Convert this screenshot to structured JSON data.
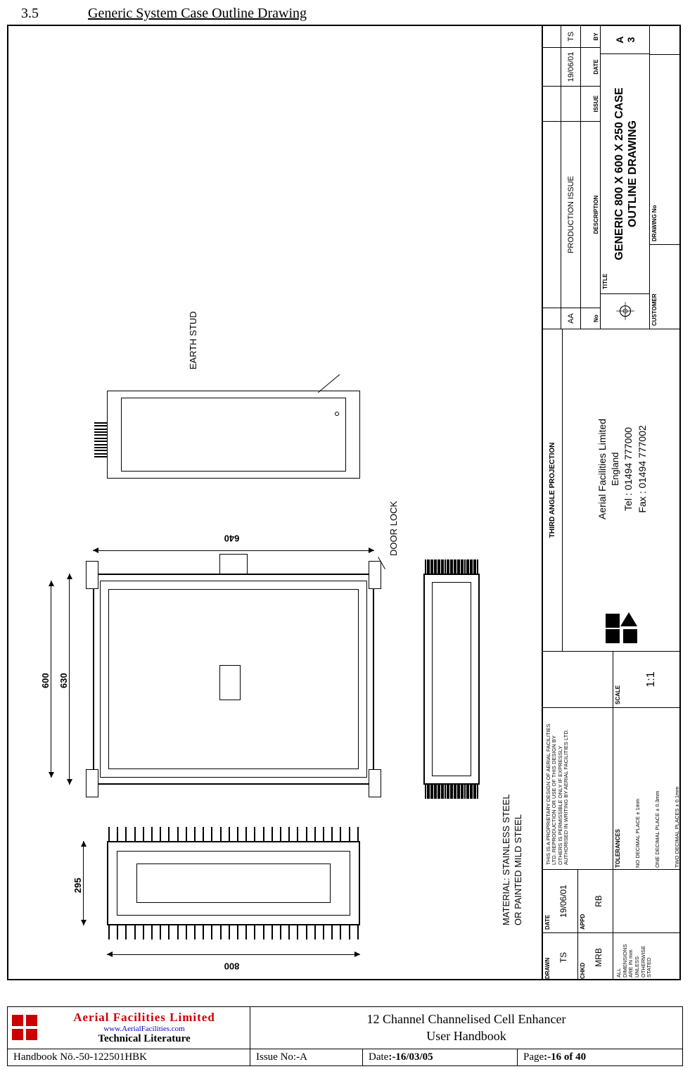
{
  "section": {
    "number": "3.5",
    "title": "Generic System Case Outline Drawing"
  },
  "drawing": {
    "dims": {
      "width_top": "600",
      "height_left": "800",
      "depth": "295",
      "front_width": "630",
      "front_height": "640"
    },
    "callouts": {
      "earth_stud": "EARTH STUD",
      "door_lock": "DOOR LOCK"
    },
    "material": {
      "line1": "MATERIAL:  STAINLESS STEEL",
      "line2": "OR PAINTED MILD STEEL"
    }
  },
  "titleblock": {
    "col1": {
      "drawn_lbl": "DRAWN",
      "drawn": "TS",
      "chkd_lbl": "CHKD",
      "chkd": "MRB",
      "note": "ALL DIMENSIONS ARE IN mm UNLESS OTHERWISE STATED"
    },
    "col2": {
      "date_lbl": "DATE",
      "date": "19/06/01",
      "appd_lbl": "APPD",
      "appd": "RB"
    },
    "col3": {
      "proprietary": "THIS IS A PROPRIETARY DESIGN OF AERIAL FACILITIES LTD. REPRODUCTION OR USE OF THIS DESIGN BY OTHERS IS PERMISSIBLE ONLY IF EXPRESSLY AUTHORISED IN WRITING BY AERIAL FACILITIES LTD.",
      "tol_lbl": "TOLERANCES",
      "tol1": "NO DECIMAL PLACE ± 1mm",
      "tol2": "ONE DECIMAL PLACE ± 0.3mm",
      "tol3": "TWO DECIMAL PLACES ± 0.1mm"
    },
    "col4": {
      "scale_lbl": "SCALE",
      "scale": "1:1"
    },
    "col5": {
      "proj": "THIRD ANGLE PROJECTION",
      "company": "Aerial Facilities Limited",
      "country": "England",
      "tel": "Tel : 01494 777000",
      "fax": "Fax : 01494 777002"
    },
    "col6": {
      "rev": {
        "no_lbl": "No",
        "desc_lbl": "DESCRIPTION",
        "iss_lbl": "ISSUE",
        "date_lbl": "DATE",
        "by_lbl": "BY",
        "no": "AA",
        "desc": "PRODUCTION ISSUE",
        "iss": "",
        "date": "19/06/01",
        "by": "TS"
      },
      "title_lbl": "TITLE",
      "title1": "GENERIC 800 X 600 X 250 CASE",
      "title2": "OUTLINE DRAWING",
      "iss_letter": "A",
      "iss_num": "3",
      "cust_lbl": "CUSTOMER",
      "dwg_lbl": "DRAWING No"
    }
  },
  "footer": {
    "brand": {
      "line1": "Aerial  Facilities  Limited",
      "line2": "www.AerialFacilities.com",
      "line3": "Technical Literature"
    },
    "doc": {
      "line1": "12 Channel Channelised Cell Enhancer",
      "line2": "User Handbook"
    },
    "row2": {
      "handbook_lbl": "Handbook Nō.",
      "handbook": "-50-122501HBK",
      "issue_lbl": "Issue No:",
      "issue": "-A",
      "date_lbl": "Date",
      "date": ":-16/03/05",
      "page_lbl": "Page",
      "page": ":-16 of 40"
    }
  },
  "colors": {
    "brand_red": "#cc0000",
    "brand_blue": "#0000cc"
  }
}
